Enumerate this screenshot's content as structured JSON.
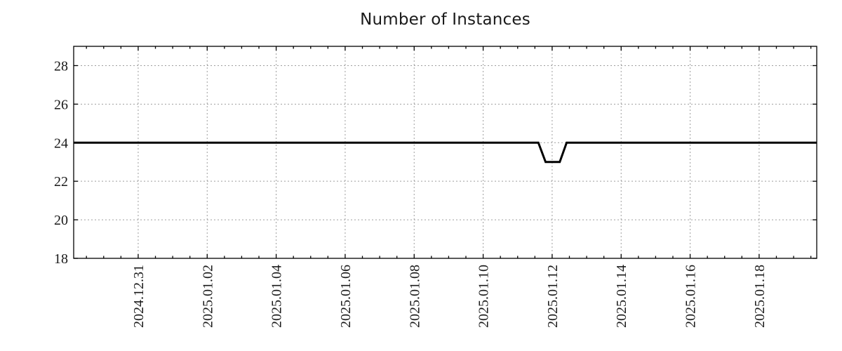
{
  "page": {
    "background": "#ffffff"
  },
  "chart_data": {
    "type": "line",
    "title": "Number of Instances",
    "x_axis": {
      "kind": "time",
      "epoch_date": "2024-12-29",
      "range_days": [
        0.13,
        21.67
      ],
      "major_tick_days": [
        2,
        4,
        6,
        8,
        10,
        12,
        14,
        16,
        18,
        20
      ],
      "tick_labels": [
        "2024.12.31",
        "2025.01.02",
        "2025.01.04",
        "2025.01.06",
        "2025.01.08",
        "2025.01.10",
        "2025.01.12",
        "2025.01.14",
        "2025.01.16",
        "2025.01.18"
      ],
      "minor_tick_step_days": 0.5,
      "tick_label_rotation_deg": -90
    },
    "y_axis": {
      "range": [
        18,
        29
      ],
      "major_ticks": [
        18,
        20,
        22,
        24,
        26,
        28
      ],
      "tick_labels": [
        "18",
        "20",
        "22",
        "24",
        "26",
        "28"
      ]
    },
    "series": [
      {
        "name": "instances",
        "color": "#000000",
        "line_width": 3,
        "points_day_value": [
          [
            0.13,
            24
          ],
          [
            13.6,
            24
          ],
          [
            13.81,
            23
          ],
          [
            14.22,
            23
          ],
          [
            14.42,
            24
          ],
          [
            21.67,
            24
          ]
        ]
      }
    ],
    "summary": {
      "baseline_value": 24,
      "dip_value": 23,
      "dip_approx_start": "2025-01-11 19:00",
      "dip_approx_end": "2025-01-12 05:00"
    },
    "grid": {
      "show": true,
      "style": "dotted",
      "color": "#9e9e9e"
    },
    "legend_position": "none",
    "frame_color": "#000000",
    "text_color": "#1a1a1a"
  }
}
